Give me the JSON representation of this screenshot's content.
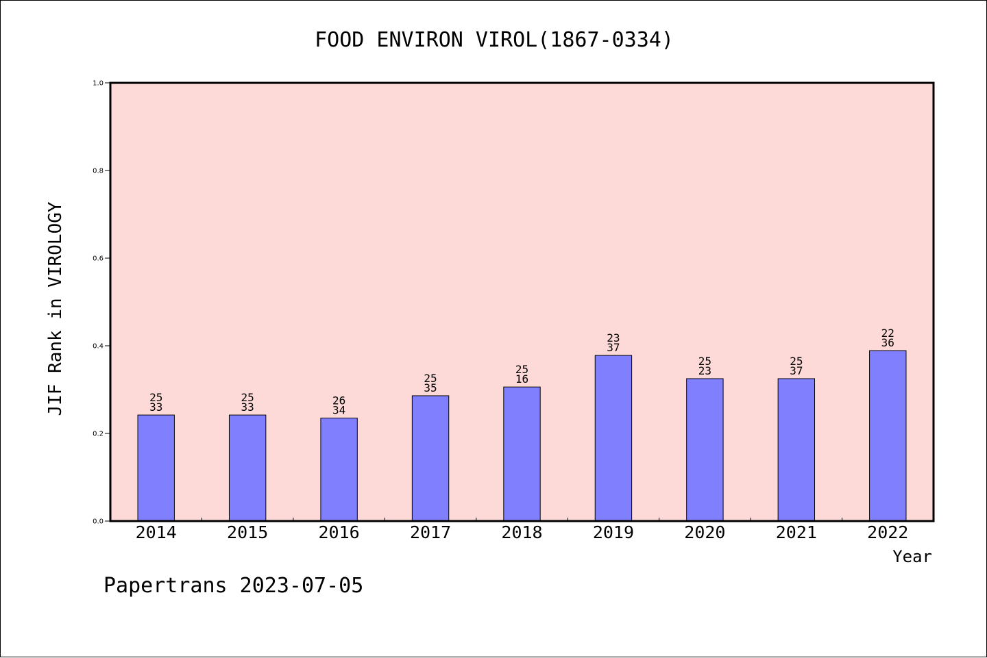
{
  "chart_data": {
    "type": "bar",
    "title": "FOOD ENVIRON VIROL(1867-0334)",
    "xlabel": "Year",
    "ylabel": "JIF Rank in VIROLOGY",
    "ylim": [
      0,
      1.0
    ],
    "yticks": [
      "0.0",
      "0.2",
      "0.4",
      "0.6",
      "0.8",
      "1.0"
    ],
    "grid": false,
    "categories": [
      "2014",
      "2015",
      "2016",
      "2017",
      "2018",
      "2019",
      "2020",
      "2021",
      "2022"
    ],
    "values": [
      0.242,
      0.242,
      0.235,
      0.286,
      0.306,
      0.378,
      0.325,
      0.325,
      0.389
    ],
    "annotations": [
      [
        "25",
        "33"
      ],
      [
        "25",
        "33"
      ],
      [
        "26",
        "34"
      ],
      [
        "25",
        "35"
      ],
      [
        "25",
        "16"
      ],
      [
        "23",
        "37"
      ],
      [
        "25",
        "23"
      ],
      [
        "25",
        "37"
      ],
      [
        "22",
        "36"
      ]
    ],
    "colors": {
      "bar": "#8080ff",
      "plot_background": "#fddad7",
      "axis": "#000000"
    }
  },
  "footer": {
    "text": "Papertrans 2023-07-05"
  }
}
